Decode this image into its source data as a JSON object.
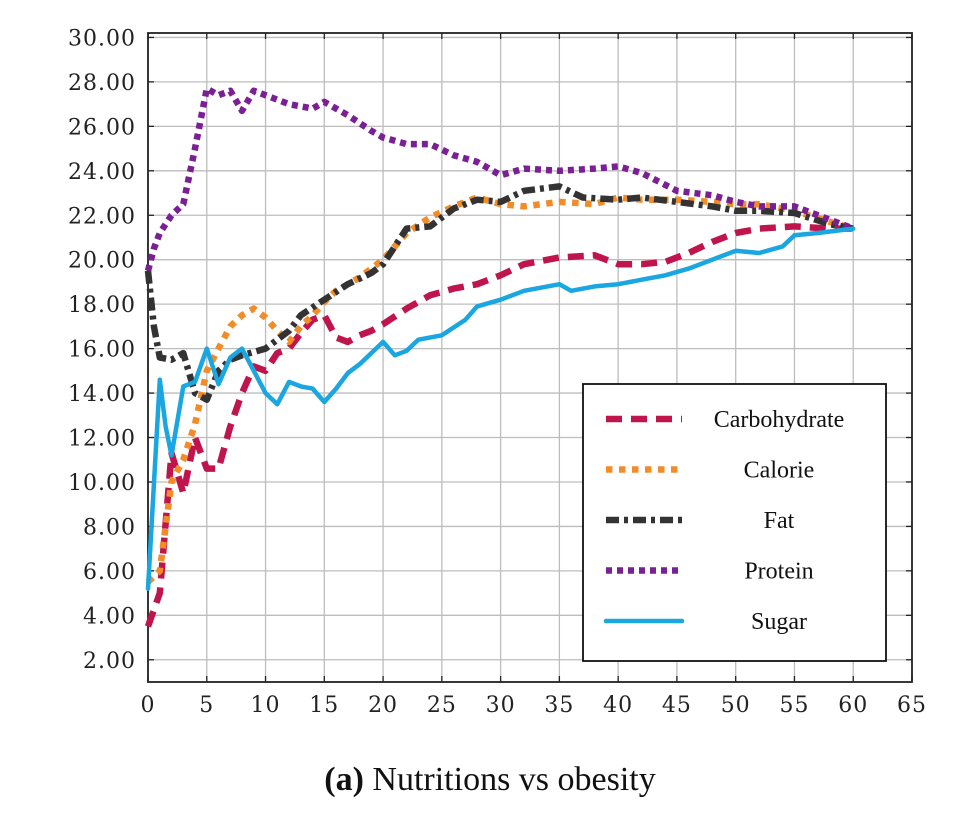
{
  "chart_data": {
    "type": "line",
    "caption": {
      "prefix": "(a)",
      "text": " Nutritions vs obesity"
    },
    "xlabel": "",
    "ylabel": "",
    "xlim": [
      0,
      65
    ],
    "ylim": [
      1,
      30.2
    ],
    "x_ticks": [
      "0",
      "5",
      "10",
      "15",
      "20",
      "25",
      "30",
      "35",
      "40",
      "45",
      "50",
      "55",
      "60",
      "65"
    ],
    "y_ticks": [
      "2.00",
      "4.00",
      "6.00",
      "8.00",
      "10.00",
      "12.00",
      "14.00",
      "16.00",
      "18.00",
      "20.00",
      "22.00",
      "24.00",
      "26.00",
      "28.00",
      "30.00"
    ],
    "grid": true,
    "legend_position": "bottom-right",
    "series": [
      {
        "name": "Carbohydrate",
        "color": "#c0144c",
        "dash": "dashed",
        "points": [
          [
            0,
            3.5
          ],
          [
            1,
            5
          ],
          [
            2,
            11.3
          ],
          [
            3,
            9.5
          ],
          [
            4,
            12
          ],
          [
            5,
            10.6
          ],
          [
            6,
            10.6
          ],
          [
            7,
            12.5
          ],
          [
            8,
            14
          ],
          [
            9,
            15.2
          ],
          [
            10,
            15
          ],
          [
            11,
            15.8
          ],
          [
            12,
            16
          ],
          [
            13,
            16.7
          ],
          [
            14,
            17.3
          ],
          [
            15,
            17.5
          ],
          [
            16,
            16.5
          ],
          [
            17,
            16.3
          ],
          [
            18,
            16.6
          ],
          [
            19,
            16.8
          ],
          [
            20,
            17.1
          ],
          [
            22,
            17.8
          ],
          [
            24,
            18.4
          ],
          [
            26,
            18.7
          ],
          [
            28,
            18.9
          ],
          [
            30,
            19.3
          ],
          [
            32,
            19.8
          ],
          [
            35,
            20.1
          ],
          [
            38,
            20.2
          ],
          [
            40,
            19.8
          ],
          [
            42,
            19.8
          ],
          [
            44,
            19.9
          ],
          [
            46,
            20.3
          ],
          [
            48,
            20.8
          ],
          [
            50,
            21.2
          ],
          [
            52,
            21.4
          ],
          [
            55,
            21.5
          ],
          [
            58,
            21.4
          ],
          [
            60,
            21.4
          ]
        ]
      },
      {
        "name": "Calorie",
        "color": "#f28c28",
        "dash": "dotted",
        "points": [
          [
            0,
            5.5
          ],
          [
            1,
            6
          ],
          [
            2,
            10
          ],
          [
            3,
            11
          ],
          [
            4,
            12.6
          ],
          [
            5,
            15
          ],
          [
            6,
            16
          ],
          [
            7,
            17
          ],
          [
            8,
            17.5
          ],
          [
            9,
            17.8
          ],
          [
            10,
            17.4
          ],
          [
            11,
            16.8
          ],
          [
            12,
            16.3
          ],
          [
            13,
            17
          ],
          [
            14,
            17.5
          ],
          [
            15,
            18.1
          ],
          [
            16,
            18.6
          ],
          [
            18,
            19.2
          ],
          [
            20,
            20
          ],
          [
            22,
            21.2
          ],
          [
            24,
            21.9
          ],
          [
            26,
            22.4
          ],
          [
            28,
            22.8
          ],
          [
            30,
            22.5
          ],
          [
            32,
            22.4
          ],
          [
            35,
            22.6
          ],
          [
            38,
            22.5
          ],
          [
            40,
            22.8
          ],
          [
            42,
            22.7
          ],
          [
            45,
            22.7
          ],
          [
            48,
            22.6
          ],
          [
            50,
            22.5
          ],
          [
            52,
            22.5
          ],
          [
            55,
            22.2
          ],
          [
            58,
            21.7
          ],
          [
            60,
            21.4
          ]
        ]
      },
      {
        "name": "Fat",
        "color": "#333333",
        "dash": "dashdot",
        "points": [
          [
            0,
            19.5
          ],
          [
            0.5,
            17
          ],
          [
            1,
            15.6
          ],
          [
            2,
            15.5
          ],
          [
            3,
            15.8
          ],
          [
            4,
            14
          ],
          [
            5,
            13.7
          ],
          [
            6,
            15
          ],
          [
            7,
            15.5
          ],
          [
            8,
            15.7
          ],
          [
            10,
            16
          ],
          [
            12,
            16.8
          ],
          [
            13,
            17.5
          ],
          [
            15,
            18.2
          ],
          [
            17,
            18.9
          ],
          [
            19,
            19.4
          ],
          [
            20,
            19.8
          ],
          [
            22,
            21.4
          ],
          [
            24,
            21.5
          ],
          [
            26,
            22.3
          ],
          [
            28,
            22.7
          ],
          [
            30,
            22.6
          ],
          [
            32,
            23.1
          ],
          [
            35,
            23.3
          ],
          [
            37,
            22.8
          ],
          [
            40,
            22.7
          ],
          [
            42,
            22.8
          ],
          [
            45,
            22.6
          ],
          [
            48,
            22.4
          ],
          [
            50,
            22.2
          ],
          [
            52,
            22.2
          ],
          [
            55,
            22.1
          ],
          [
            58,
            21.6
          ],
          [
            60,
            21.4
          ]
        ]
      },
      {
        "name": "Protein",
        "color": "#7b1f94",
        "dash": "densedot",
        "points": [
          [
            0,
            19.5
          ],
          [
            0.5,
            20.5
          ],
          [
            1,
            21.2
          ],
          [
            2,
            22
          ],
          [
            3,
            22.5
          ],
          [
            4,
            25
          ],
          [
            5,
            27.7
          ],
          [
            6,
            27.4
          ],
          [
            7,
            27.6
          ],
          [
            8,
            26.7
          ],
          [
            9,
            27.6
          ],
          [
            10,
            27.4
          ],
          [
            12,
            27
          ],
          [
            14,
            26.8
          ],
          [
            15,
            27.1
          ],
          [
            17,
            26.5
          ],
          [
            19,
            25.8
          ],
          [
            20,
            25.5
          ],
          [
            22,
            25.2
          ],
          [
            24,
            25.2
          ],
          [
            26,
            24.7
          ],
          [
            28,
            24.4
          ],
          [
            30,
            23.8
          ],
          [
            32,
            24.1
          ],
          [
            35,
            24
          ],
          [
            38,
            24.1
          ],
          [
            40,
            24.2
          ],
          [
            42,
            23.9
          ],
          [
            45,
            23.1
          ],
          [
            48,
            22.9
          ],
          [
            50,
            22.6
          ],
          [
            52,
            22.4
          ],
          [
            55,
            22.4
          ],
          [
            58,
            21.8
          ],
          [
            60,
            21.4
          ]
        ]
      },
      {
        "name": "Sugar",
        "color": "#1aa6e0",
        "dash": "solid",
        "points": [
          [
            0,
            5.2
          ],
          [
            1,
            14.6
          ],
          [
            1.5,
            12.5
          ],
          [
            2,
            11.2
          ],
          [
            3,
            14.3
          ],
          [
            4,
            14.5
          ],
          [
            5,
            16
          ],
          [
            6,
            14.4
          ],
          [
            7,
            15.6
          ],
          [
            8,
            16
          ],
          [
            9,
            15
          ],
          [
            10,
            14
          ],
          [
            11,
            13.5
          ],
          [
            12,
            14.5
          ],
          [
            13,
            14.3
          ],
          [
            14,
            14.2
          ],
          [
            15,
            13.6
          ],
          [
            16,
            14.2
          ],
          [
            17,
            14.9
          ],
          [
            18,
            15.3
          ],
          [
            19,
            15.8
          ],
          [
            20,
            16.3
          ],
          [
            21,
            15.7
          ],
          [
            22,
            15.9
          ],
          [
            23,
            16.4
          ],
          [
            25,
            16.6
          ],
          [
            27,
            17.3
          ],
          [
            28,
            17.9
          ],
          [
            30,
            18.2
          ],
          [
            32,
            18.6
          ],
          [
            34,
            18.8
          ],
          [
            35,
            18.9
          ],
          [
            36,
            18.6
          ],
          [
            38,
            18.8
          ],
          [
            40,
            18.9
          ],
          [
            42,
            19.1
          ],
          [
            44,
            19.3
          ],
          [
            46,
            19.6
          ],
          [
            48,
            20
          ],
          [
            50,
            20.4
          ],
          [
            52,
            20.3
          ],
          [
            54,
            20.6
          ],
          [
            55,
            21.1
          ],
          [
            57,
            21.2
          ],
          [
            60,
            21.4
          ]
        ]
      }
    ]
  }
}
